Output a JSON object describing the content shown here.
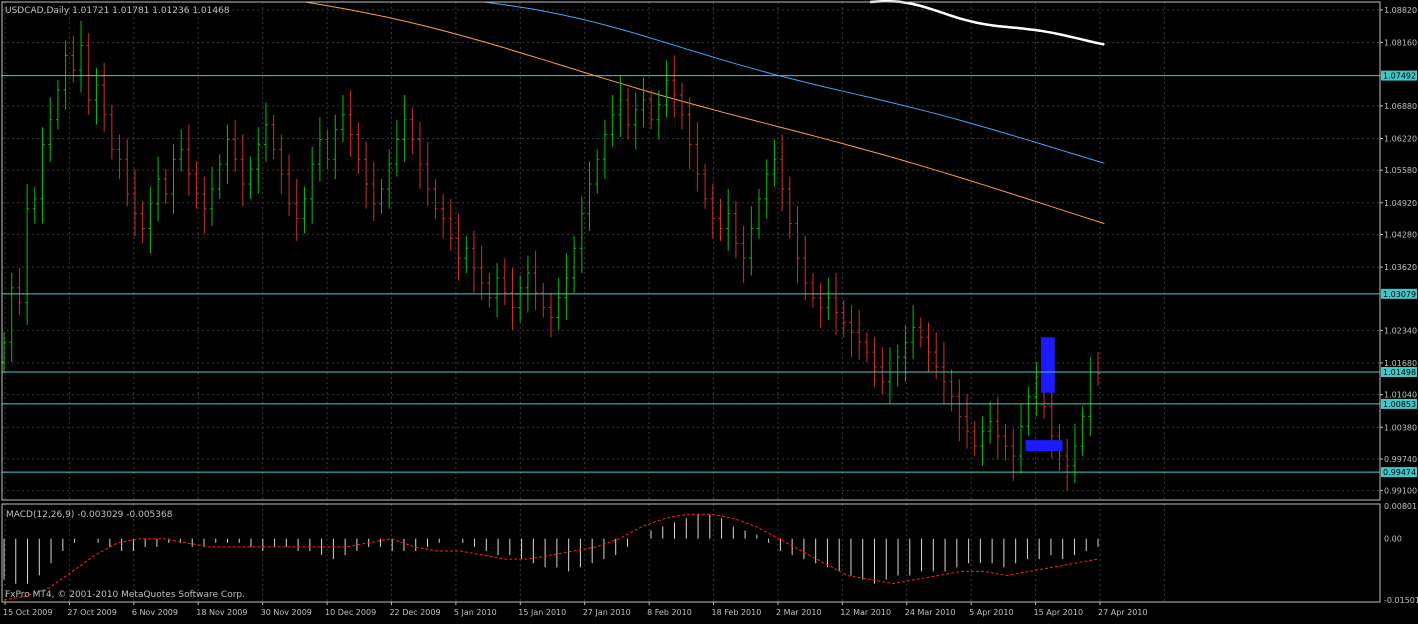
{
  "colors": {
    "background": "#000000",
    "grid": "#3a3a3a",
    "frame": "#c0c0c0",
    "up_bar": "#00c000",
    "down_bar": "#d03020",
    "hline": "#40c8c8",
    "hline_label_bg": "#40c8c8",
    "ma_white": "#ffffff",
    "ma_blue": "#3fa7ff",
    "ma_orange": "#ff9e3a",
    "zone": "#1b1bff",
    "macd_hist": "#d8d8d8",
    "macd_signal": "#ff2020",
    "text": "#c0c0c0"
  },
  "header": {
    "symbol_line": "USDCAD,Daily  1.01721 1.01781 1.01236 1.01468"
  },
  "footer": {
    "copyright": "FxPro MT4, © 2001-2010 MetaQuotes Software Corp."
  },
  "chart_data": [
    {
      "type": "candlestick",
      "title": "USDCAD,Daily",
      "ohlc_last": [
        "1.01721",
        "1.01781",
        "1.01236",
        "1.01468"
      ],
      "ylim": [
        0.9891,
        1.0898
      ],
      "price_ticks": [
        "1.08820",
        "1.08160",
        "1.07492",
        "1.06880",
        "1.06220",
        "1.05580",
        "1.04920",
        "1.04280",
        "1.03620",
        "1.03079",
        "1.02340",
        "1.01680",
        "1.01498",
        "1.01040",
        "1.00853",
        "1.00380",
        "0.99740",
        "0.99474",
        "0.99100"
      ],
      "date_labels": [
        "15 Oct 2009",
        "27 Oct 2009",
        "6 Nov 2009",
        "18 Nov 2009",
        "30 Nov 2009",
        "10 Dec 2009",
        "22 Dec 2009",
        "5 Jan 2010",
        "15 Jan 2010",
        "27 Jan 2010",
        "8 Feb 2010",
        "18 Feb 2010",
        "2 Mar 2010",
        "12 Mar 2010",
        "24 Mar 2010",
        "5 Apr 2010",
        "15 Apr 2010",
        "27 Apr 2010"
      ],
      "horizontal_levels": [
        {
          "price": 1.07492,
          "label": "1.07492"
        },
        {
          "price": 1.03079,
          "label": "1.03079"
        },
        {
          "price": 1.01498,
          "label": "1.01498"
        },
        {
          "price": 1.00853,
          "label": "1.00853"
        },
        {
          "price": 0.99474,
          "label": "0.99474"
        }
      ],
      "close_series": [
        1.021,
        1.032,
        1.029,
        1.048,
        1.05,
        1.061,
        1.066,
        1.072,
        1.079,
        1.076,
        1.081,
        1.07,
        1.073,
        1.067,
        1.06,
        1.058,
        1.051,
        1.047,
        1.044,
        1.049,
        1.054,
        1.051,
        1.058,
        1.06,
        1.055,
        1.051,
        1.048,
        1.052,
        1.057,
        1.062,
        1.058,
        1.053,
        1.056,
        1.061,
        1.065,
        1.06,
        1.055,
        1.049,
        1.046,
        1.05,
        1.057,
        1.062,
        1.058,
        1.064,
        1.067,
        1.063,
        1.058,
        1.053,
        1.049,
        1.052,
        1.057,
        1.062,
        1.066,
        1.062,
        1.057,
        1.052,
        1.048,
        1.046,
        1.042,
        1.038,
        1.04,
        1.036,
        1.033,
        1.03,
        1.034,
        1.031,
        1.028,
        1.032,
        1.035,
        1.031,
        1.028,
        1.026,
        1.03,
        1.034,
        1.04,
        1.047,
        1.053,
        1.058,
        1.063,
        1.067,
        1.07,
        1.065,
        1.068,
        1.07,
        1.066,
        1.069,
        1.074,
        1.071,
        1.067,
        1.061,
        1.055,
        1.05,
        1.046,
        1.044,
        1.047,
        1.041,
        1.038,
        1.044,
        1.05,
        1.055,
        1.058,
        1.052,
        1.045,
        1.038,
        1.033,
        1.03,
        1.028,
        1.03,
        1.027,
        1.025,
        1.023,
        1.021,
        1.019,
        1.016,
        1.013,
        1.015,
        1.018,
        1.021,
        1.024,
        1.022,
        1.019,
        1.016,
        1.013,
        1.01,
        1.006,
        1.003,
        1.0,
        1.003,
        1.005,
        1.002,
        1.0,
        0.998,
        1.004,
        1.01,
        1.014,
        1.008,
        1.002,
        0.998,
        0.996,
        1.0,
        1.006,
        1.015,
        1.01468
      ],
      "moving_averages": [
        {
          "color_key": "ma_white",
          "x_start_frac": 0.63,
          "x_end_frac": 0.8,
          "start": 1.0898,
          "end": 1.0812
        },
        {
          "color_key": "ma_blue",
          "x_start_frac": 0.35,
          "x_end_frac": 0.8,
          "start": 1.0898,
          "end": 1.0572
        },
        {
          "color_key": "ma_orange",
          "x_start_frac": 0.22,
          "x_end_frac": 0.8,
          "start": 1.0898,
          "end": 1.045
        }
      ],
      "zones": [
        {
          "label": "",
          "price_top": 1.022,
          "price_bottom": 1.0108,
          "bar_index_from": 135,
          "bar_index_to": 136
        },
        {
          "label": "",
          "price_top": 1.0012,
          "price_bottom": 0.999,
          "bar_index_from": 133,
          "bar_index_to": 137
        }
      ]
    },
    {
      "type": "bar",
      "title": "MACD(12,26,9) -0.003029 -0.005368",
      "ylim": [
        -0.0155,
        0.0085
      ],
      "y_ticks": [
        "0.00801",
        "0.00",
        "-0.01501"
      ],
      "histogram_shape": [
        -0.01,
        -0.011,
        -0.011,
        -0.009,
        -0.006,
        -0.003,
        -0.001,
        0.0,
        -0.001,
        -0.002,
        -0.003,
        -0.003,
        -0.002,
        -0.002,
        -0.001,
        -0.001,
        -0.002,
        -0.002,
        -0.001,
        -0.001,
        -0.001,
        -0.002,
        -0.003,
        -0.002,
        -0.002,
        -0.003,
        -0.003,
        -0.004,
        -0.005,
        -0.004,
        -0.003,
        -0.002,
        -0.002,
        -0.003,
        -0.003,
        -0.003,
        -0.002,
        -0.001,
        0.0,
        -0.001,
        -0.002,
        -0.003,
        -0.004,
        -0.004,
        -0.005,
        -0.006,
        -0.007,
        -0.007,
        -0.008,
        -0.007,
        -0.006,
        -0.005,
        -0.004,
        -0.002,
        0.0,
        0.002,
        0.003,
        0.004,
        0.005,
        0.006,
        0.006,
        0.005,
        0.003,
        0.002,
        0.001,
        -0.001,
        -0.003,
        -0.004,
        -0.005,
        -0.006,
        -0.007,
        -0.008,
        -0.009,
        -0.01,
        -0.011,
        -0.01,
        -0.009,
        -0.009,
        -0.008,
        -0.008,
        -0.008,
        -0.007,
        -0.006,
        -0.006,
        -0.006,
        -0.007,
        -0.006,
        -0.005,
        -0.005,
        -0.004,
        -0.005,
        -0.004,
        -0.003,
        -0.002
      ],
      "signal_line": [
        -0.015,
        -0.014,
        -0.012,
        -0.008,
        -0.004,
        -0.001,
        0.0,
        0.0,
        -0.001,
        -0.002,
        -0.002,
        -0.002,
        -0.002,
        -0.002,
        -0.002,
        -0.002,
        -0.001,
        0.0,
        -0.002,
        -0.003,
        -0.003,
        -0.004,
        -0.005,
        -0.005,
        -0.004,
        -0.003,
        -0.002,
        0.0,
        0.003,
        0.005,
        0.006,
        0.006,
        0.005,
        0.003,
        0.0,
        -0.003,
        -0.006,
        -0.009,
        -0.01,
        -0.011,
        -0.01,
        -0.009,
        -0.008,
        -0.008,
        -0.009,
        -0.008,
        -0.007,
        -0.006,
        -0.005
      ]
    }
  ]
}
